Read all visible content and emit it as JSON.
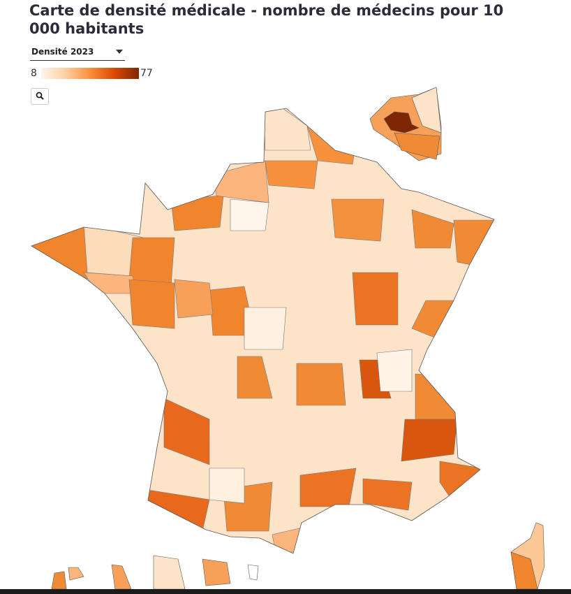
{
  "header": {
    "title": "Carte de densité médicale - nombre de médecins pour 10 000 habitants"
  },
  "dropdown": {
    "selected": "Densité 2023"
  },
  "legend": {
    "min": 8,
    "max": 77,
    "colors": [
      "#fff5eb",
      "#fdd0a2",
      "#fd8d3c",
      "#d94801",
      "#7f2704"
    ]
  }
}
